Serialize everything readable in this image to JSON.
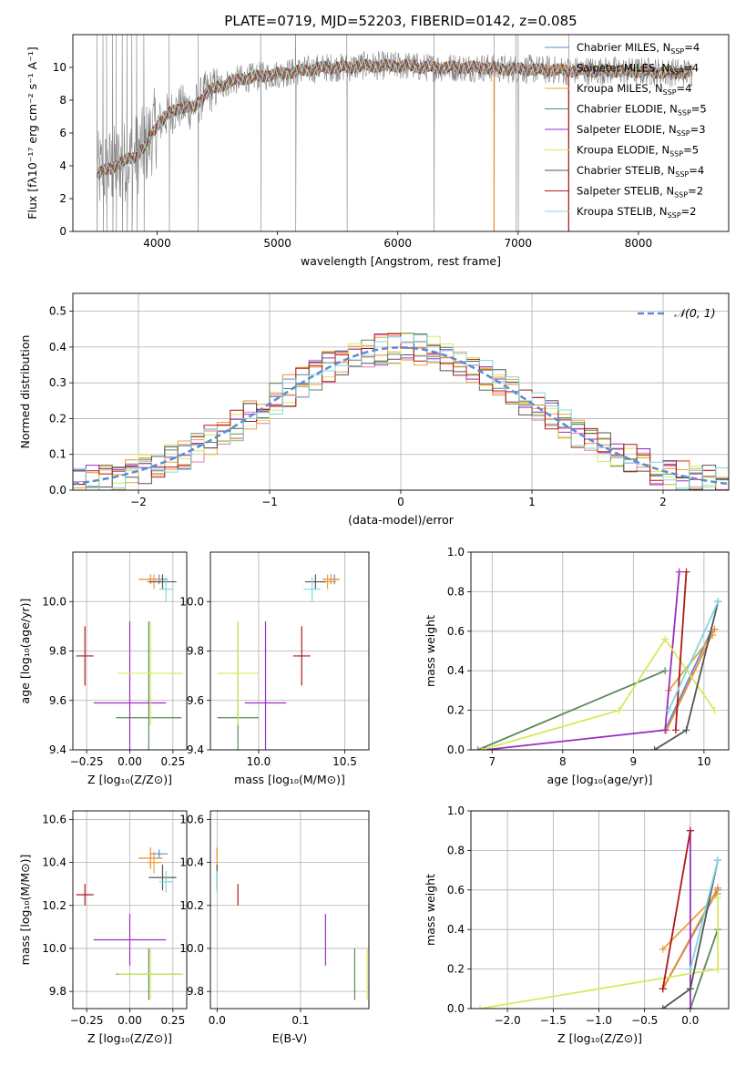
{
  "figure_title": "PLATE=0719, MJD=52203, FIBERID=0142, z=0.085",
  "colors": {
    "Chabrier MILES": "#5b8bd6",
    "Salpeter MILES": "#ee8a2a",
    "Kroupa MILES": "#e8a33a",
    "Chabrier ELODIE": "#5a8a5a",
    "Salpeter ELODIE": "#9a2fc0",
    "Kroupa ELODIE": "#d6ea5a",
    "Chabrier STELIB": "#555555",
    "Salpeter STELIB": "#b01818",
    "Kroupa STELIB": "#7fd8e0",
    "data": "#808080",
    "gaussian": "#5b8bd6",
    "grid": "#b0b0b0"
  },
  "chart_data": [
    {
      "id": "spectrum",
      "type": "line",
      "xlabel": "wavelength [Angstrom, rest frame]",
      "ylabel": "Flux [fλ10⁻¹⁷ erg cm⁻² s⁻¹ A⁻¹]",
      "xlim": [
        3300,
        8750
      ],
      "ylim": [
        0,
        12
      ],
      "xticks": [
        4000,
        5000,
        6000,
        7000,
        8000
      ],
      "yticks": [
        0,
        2,
        4,
        6,
        8,
        10
      ],
      "grid": false,
      "legend_position": "right",
      "legend": [
        {
          "label": "Chabrier MILES, N",
          "sub": "SSP",
          "tail": "=4"
        },
        {
          "label": "Salpeter MILES, N",
          "sub": "SSP",
          "tail": "=4"
        },
        {
          "label": "Kroupa MILES, N",
          "sub": "SSP",
          "tail": "=4"
        },
        {
          "label": "Chabrier ELODIE, N",
          "sub": "SSP",
          "tail": "=5"
        },
        {
          "label": "Salpeter ELODIE, N",
          "sub": "SSP",
          "tail": "=3"
        },
        {
          "label": "Kroupa ELODIE, N",
          "sub": "SSP",
          "tail": "=5"
        },
        {
          "label": "Chabrier STELIB, N",
          "sub": "SSP",
          "tail": "=4"
        },
        {
          "label": "Salpeter STELIB, N",
          "sub": "SSP",
          "tail": "=2"
        },
        {
          "label": "Kroupa STELIB, N",
          "sub": "SSP",
          "tail": "=2"
        }
      ],
      "continuum_model": [
        [
          3500,
          3.5
        ],
        [
          3600,
          3.8
        ],
        [
          3700,
          4.2
        ],
        [
          3800,
          4.5
        ],
        [
          3900,
          5.2
        ],
        [
          4000,
          6.5
        ],
        [
          4100,
          7.2
        ],
        [
          4200,
          7.6
        ],
        [
          4300,
          7.5
        ],
        [
          4400,
          8.4
        ],
        [
          4500,
          8.8
        ],
        [
          4600,
          9.1
        ],
        [
          4700,
          9.3
        ],
        [
          4800,
          9.4
        ],
        [
          4900,
          9.5
        ],
        [
          5000,
          9.6
        ],
        [
          5100,
          9.7
        ],
        [
          5200,
          9.8
        ],
        [
          5300,
          9.9
        ],
        [
          5400,
          10.0
        ],
        [
          5500,
          10.0
        ],
        [
          5600,
          10.0
        ],
        [
          5700,
          10.1
        ],
        [
          5800,
          10.1
        ],
        [
          5900,
          10.1
        ],
        [
          6000,
          10.1
        ],
        [
          6100,
          10.1
        ],
        [
          6200,
          10.0
        ],
        [
          6300,
          10.0
        ],
        [
          6400,
          10.0
        ],
        [
          6500,
          10.0
        ],
        [
          6600,
          10.0
        ],
        [
          6700,
          10.0
        ],
        [
          6800,
          9.95
        ],
        [
          6900,
          9.9
        ],
        [
          7000,
          9.9
        ],
        [
          7100,
          9.9
        ],
        [
          7200,
          9.85
        ],
        [
          7300,
          9.85
        ],
        [
          7400,
          9.8
        ],
        [
          7500,
          9.8
        ],
        [
          7600,
          9.8
        ],
        [
          7700,
          9.8
        ],
        [
          7800,
          9.8
        ],
        [
          7900,
          9.75
        ],
        [
          8000,
          9.75
        ],
        [
          8100,
          9.75
        ],
        [
          8200,
          9.7
        ],
        [
          8300,
          9.7
        ],
        [
          8400,
          9.7
        ]
      ],
      "spikes": [
        3500,
        3550,
        3580,
        3630,
        3660,
        3710,
        3750,
        3790,
        3830,
        3890,
        4100,
        4340,
        4861,
        5150,
        5577,
        6300,
        6800,
        6980,
        7000,
        7420
      ]
    },
    {
      "id": "residuals",
      "type": "histogram",
      "xlabel": "(data-model)/error",
      "ylabel": "Normed distribution",
      "xlim": [
        -2.5,
        2.5
      ],
      "ylim": [
        0,
        0.55
      ],
      "xticks": [
        -2,
        -1,
        0,
        1,
        2
      ],
      "yticks": [
        0.0,
        0.1,
        0.2,
        0.3,
        0.4,
        0.5
      ],
      "grid": true,
      "legend_position": "top-right",
      "legend": [
        {
          "label": "𝒩(0, 1)"
        }
      ]
    },
    {
      "id": "age_vs_Z",
      "type": "scatter",
      "xlabel": "Z [log₁₀(Z/Z⊙)]",
      "ylabel": "age  [log₁₀(age/yr)]",
      "xlim": [
        -0.33,
        0.33
      ],
      "ylim": [
        9.4,
        10.2
      ],
      "xticks": [
        -0.25,
        0.0,
        0.25
      ],
      "yticks": [
        9.4,
        9.6,
        9.8,
        10.0
      ],
      "grid": true
    },
    {
      "id": "age_vs_mass",
      "type": "scatter",
      "xlabel": "mass [log₁₀(M/M⊙)]",
      "ylabel": "",
      "xlim": [
        9.72,
        10.64
      ],
      "ylim": [
        9.4,
        10.2
      ],
      "xticks": [
        10.0,
        10.5
      ],
      "yticks": [
        9.4,
        9.6,
        9.8,
        10.0
      ],
      "grid": true
    },
    {
      "id": "weight_vs_age",
      "type": "line",
      "xlabel": "age  [log₁₀(age/yr)]",
      "ylabel": "mass weight",
      "xlim": [
        6.7,
        10.35
      ],
      "ylim": [
        0,
        1
      ],
      "xticks": [
        7,
        8,
        9,
        10
      ],
      "yticks": [
        0.0,
        0.2,
        0.4,
        0.6,
        0.8,
        1.0
      ],
      "grid": true
    },
    {
      "id": "mass_vs_Z",
      "type": "scatter",
      "xlabel": "Z [log₁₀(Z/Z⊙)]",
      "ylabel": "mass [log₁₀(M/M⊙)]",
      "xlim": [
        -0.33,
        0.33
      ],
      "ylim": [
        9.72,
        10.64
      ],
      "xticks": [
        -0.25,
        0.0,
        0.25
      ],
      "yticks": [
        9.8,
        10.0,
        10.2,
        10.4,
        10.6
      ],
      "grid": true
    },
    {
      "id": "mass_vs_ebv",
      "type": "scatter",
      "xlabel": "E(B-V)",
      "ylabel": "",
      "xlim": [
        -0.008,
        0.182
      ],
      "ylim": [
        9.72,
        10.64
      ],
      "xticks": [
        0.0,
        0.1
      ],
      "yticks": [
        9.8,
        10.0,
        10.2,
        10.4,
        10.6
      ],
      "grid": true
    },
    {
      "id": "weight_vs_Z",
      "type": "line",
      "xlabel": "Z [log₁₀(Z/Z⊙)]",
      "ylabel": "mass weight",
      "xlim": [
        -2.4,
        0.42
      ],
      "ylim": [
        0,
        1
      ],
      "xticks": [
        -2.0,
        -1.5,
        -1.0,
        -0.5,
        0.0
      ],
      "yticks": [
        0.0,
        0.2,
        0.4,
        0.6,
        0.8,
        1.0
      ],
      "grid": true
    }
  ],
  "fits": [
    {
      "name": "Chabrier MILES",
      "Z": 0.17,
      "Zerr": 0.05,
      "age": 10.09,
      "ageerr": 0.02,
      "mass": 10.44,
      "masserr": 0.02,
      "ebv": 0.0,
      "ssp_age": [
        9.45,
        10.1
      ],
      "ssp_Z": [
        -0.3,
        0.3
      ],
      "w": [
        0.1,
        0.6
      ]
    },
    {
      "name": "Salpeter MILES",
      "Z": 0.12,
      "Zerr": 0.07,
      "age": 10.09,
      "ageerr": 0.02,
      "mass": 10.42,
      "masserr": 0.05,
      "ebv": 0.0,
      "ssp_age": [
        9.47,
        10.15
      ],
      "ssp_Z": [
        -0.3,
        0.3
      ],
      "w": [
        0.1,
        0.61
      ]
    },
    {
      "name": "Kroupa MILES",
      "Z": 0.14,
      "Zerr": 0.04,
      "age": 10.08,
      "ageerr": 0.03,
      "mass": 10.4,
      "masserr": 0.05,
      "ebv": 0.0,
      "ssp_age": [
        9.5,
        10.12
      ],
      "ssp_Z": [
        -0.3,
        0.3
      ],
      "w": [
        0.3,
        0.58
      ]
    },
    {
      "name": "Chabrier ELODIE",
      "Z": 0.11,
      "Zerr": 0.19,
      "age": 9.53,
      "ageerr": 0.39,
      "mass": 9.88,
      "masserr": 0.12,
      "ebv": 0.165,
      "ssp_age": [
        6.8,
        9.45
      ],
      "ssp_Z": [
        0.0,
        0.3
      ],
      "w": [
        0.0,
        0.4
      ]
    },
    {
      "name": "Salpeter ELODIE",
      "Z": 0.0,
      "Zerr": 0.21,
      "age": 9.59,
      "ageerr": 0.33,
      "mass": 10.04,
      "masserr": 0.12,
      "ebv": 0.13,
      "ssp_age": [
        6.9,
        9.45,
        9.65
      ],
      "ssp_Z": [
        0.0,
        0.0,
        0.0
      ],
      "w": [
        0.0,
        0.1,
        0.9
      ]
    },
    {
      "name": "Kroupa ELODIE",
      "Z": 0.12,
      "Zerr": 0.19,
      "age": 9.71,
      "ageerr": 0.21,
      "mass": 9.88,
      "masserr": 0.12,
      "ebv": 0.18,
      "ssp_age": [
        6.85,
        8.8,
        9.45,
        10.15
      ],
      "ssp_Z": [
        -2.3,
        0.3,
        0.3,
        0.3
      ],
      "w": [
        0.0,
        0.2,
        0.56,
        0.2
      ]
    },
    {
      "name": "Chabrier STELIB",
      "Z": 0.19,
      "Zerr": 0.08,
      "age": 10.08,
      "ageerr": 0.03,
      "mass": 10.33,
      "masserr": 0.06,
      "ebv": 0.0,
      "ssp_age": [
        9.3,
        9.75,
        10.2
      ],
      "ssp_Z": [
        -0.3,
        0.0,
        0.3
      ],
      "w": [
        0.0,
        0.1,
        0.75
      ]
    },
    {
      "name": "Salpeter STELIB",
      "Z": -0.26,
      "Zerr": 0.05,
      "age": 9.78,
      "ageerr": 0.12,
      "mass": 10.25,
      "masserr": 0.05,
      "ebv": 0.025,
      "ssp_age": [
        9.6,
        9.75
      ],
      "ssp_Z": [
        -0.3,
        0.0
      ],
      "w": [
        0.1,
        0.9
      ]
    },
    {
      "name": "Kroupa STELIB",
      "Z": 0.21,
      "Zerr": 0.04,
      "age": 10.05,
      "ageerr": 0.05,
      "mass": 10.31,
      "masserr": 0.05,
      "ebv": 0.0,
      "ssp_age": [
        9.5,
        10.2
      ],
      "ssp_Z": [
        0.0,
        0.3
      ],
      "w": [
        0.2,
        0.75
      ]
    }
  ]
}
